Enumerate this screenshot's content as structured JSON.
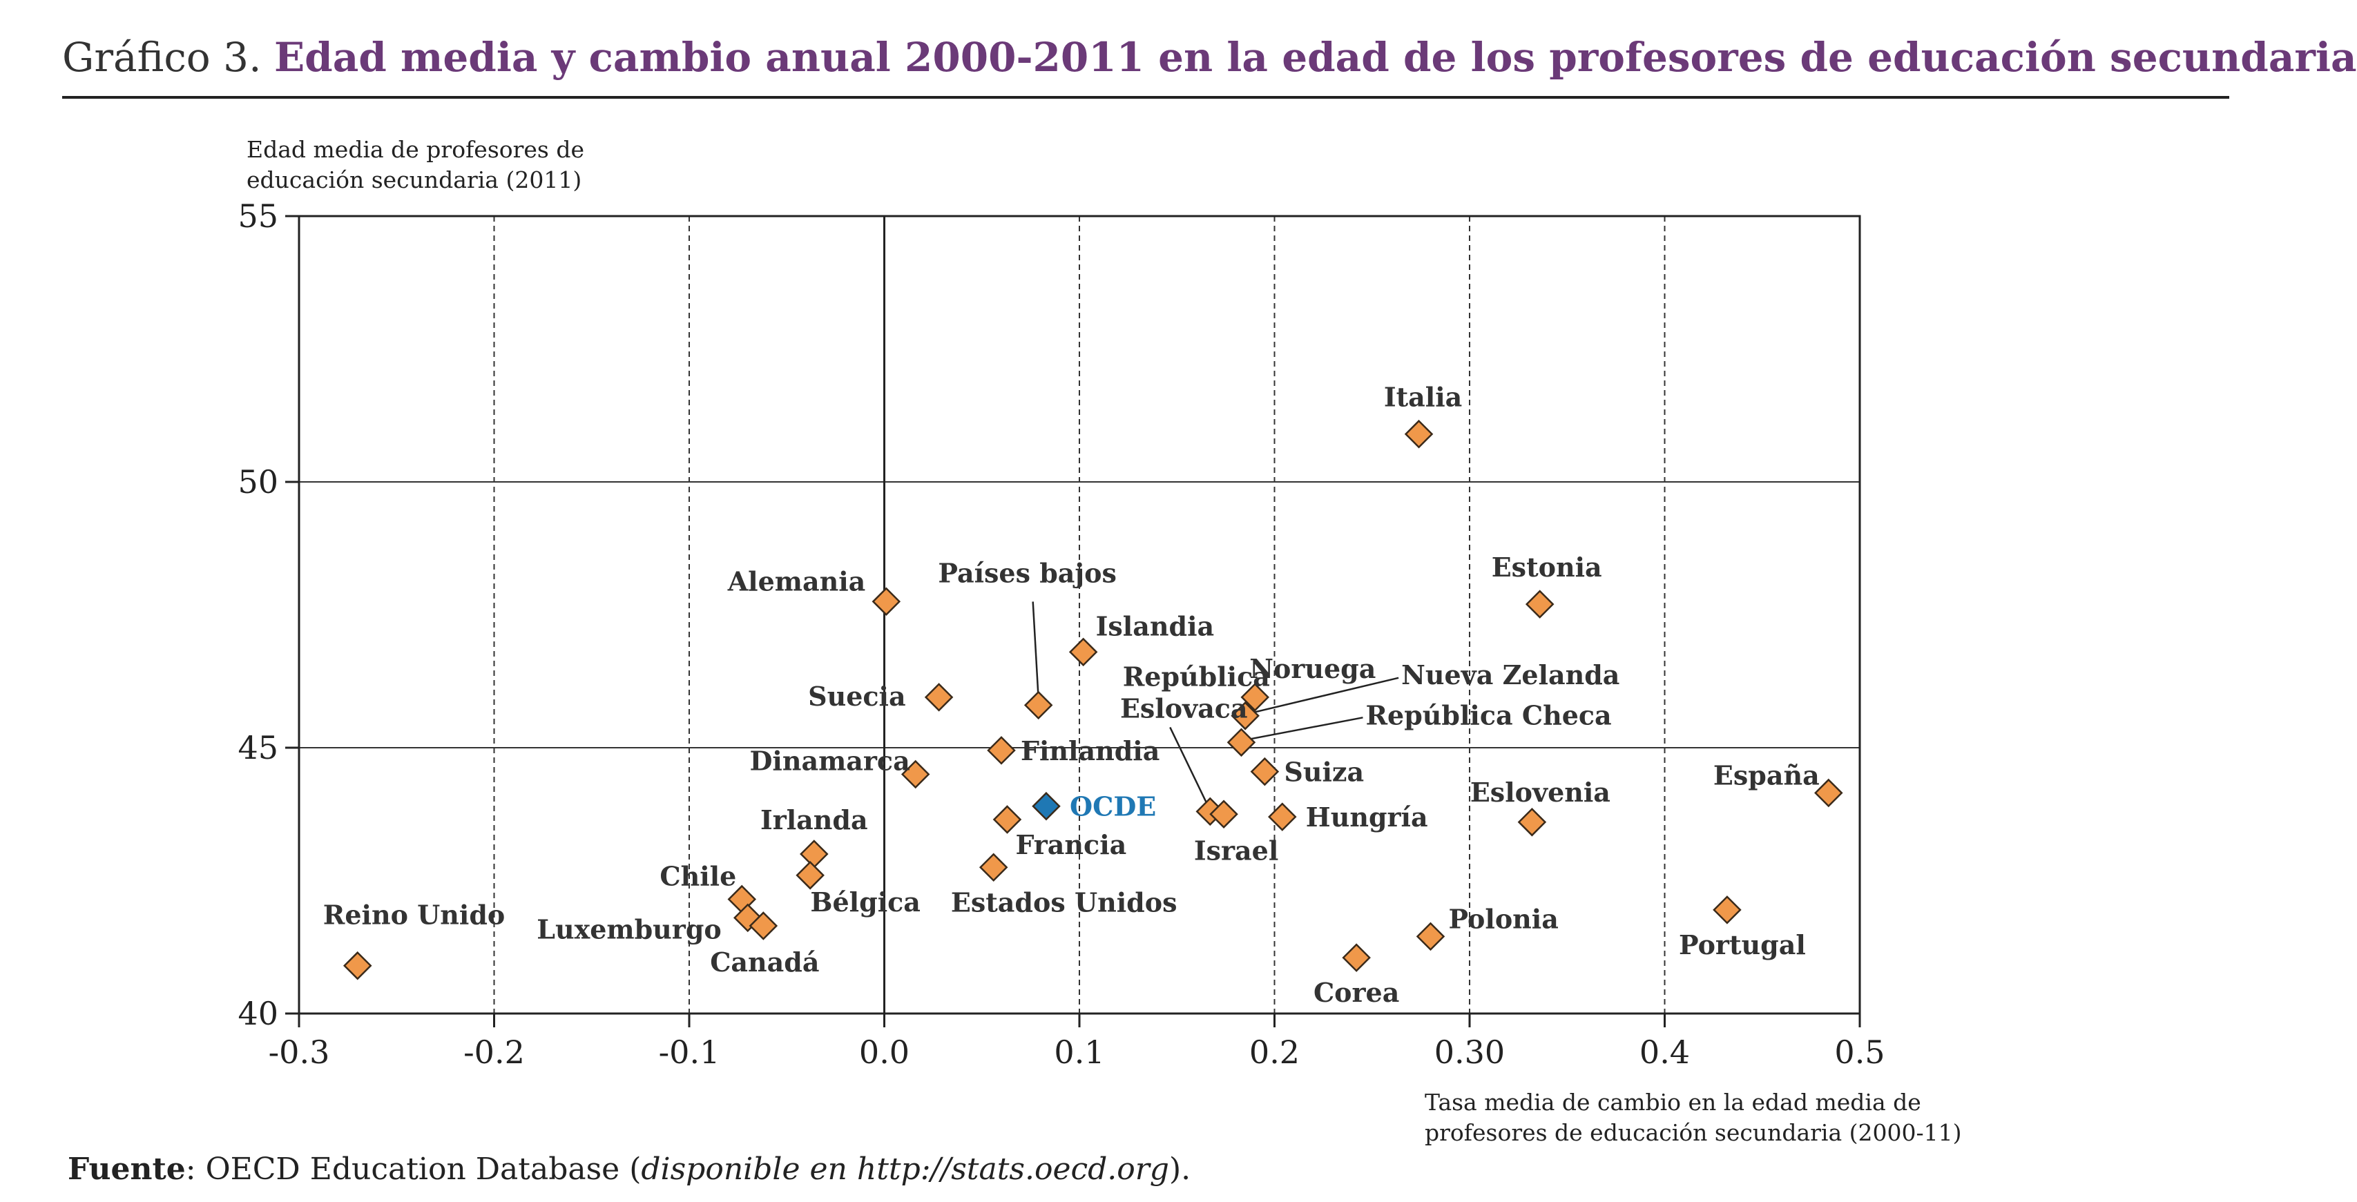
{
  "header": {
    "prefix": "Gráfico 3.",
    "title": "Edad media y cambio anual 2000-2011 en la edad de los profesores de educación secundaria"
  },
  "chart_data": {
    "type": "scatter",
    "ylabel_lines": [
      "Edad media de profesores de",
      "educación secundaria (2011)"
    ],
    "xlabel_lines": [
      "Tasa media de cambio en la edad media de",
      "profesores de educación secundaria (2000-11)"
    ],
    "xlim": [
      -0.3,
      0.5
    ],
    "ylim": [
      40,
      55
    ],
    "x_ticks": [
      -0.3,
      -0.2,
      -0.1,
      0.0,
      0.1,
      0.2,
      0.3,
      0.4,
      0.5
    ],
    "x_tick_labels": [
      "-0.3",
      "-0.2",
      "-0.1",
      "0.0",
      "0.1",
      "0.2",
      "0.30",
      "0.4",
      "0.5"
    ],
    "y_ticks": [
      40,
      45,
      50,
      55
    ],
    "y_tick_labels": [
      "40",
      "45",
      "50",
      "55"
    ],
    "grid": "solid horizontal, dashed vertical",
    "colors": {
      "point": "#f0984a",
      "point_stroke": "#3a2a1a",
      "highlight": "#1f78b4",
      "label": "#333333",
      "title": "#6b3a78"
    },
    "points": [
      {
        "name": "Reino Unido",
        "x": -0.27,
        "y": 40.9
      },
      {
        "name": "Chile",
        "x": -0.073,
        "y": 42.15
      },
      {
        "name": "Luxemburgo",
        "x": -0.07,
        "y": 41.8
      },
      {
        "name": "Canadá",
        "x": -0.062,
        "y": 41.65
      },
      {
        "name": "Irlanda",
        "x": -0.036,
        "y": 43.0
      },
      {
        "name": "Bélgica",
        "x": -0.038,
        "y": 42.6
      },
      {
        "name": "Alemania",
        "x": 0.001,
        "y": 47.75
      },
      {
        "name": "Suecia",
        "x": 0.028,
        "y": 45.95
      },
      {
        "name": "Dinamarca",
        "x": 0.016,
        "y": 44.5
      },
      {
        "name": "Finlandia",
        "x": 0.06,
        "y": 44.95
      },
      {
        "name": "Francia",
        "x": 0.063,
        "y": 43.65
      },
      {
        "name": "Estados Unidos",
        "x": 0.056,
        "y": 42.75
      },
      {
        "name": "Países bajos",
        "x": 0.079,
        "y": 45.8
      },
      {
        "name": "Islandia",
        "x": 0.102,
        "y": 46.8
      },
      {
        "name": "OCDE",
        "x": 0.083,
        "y": 43.9,
        "highlight": true
      },
      {
        "name": "República Eslovaca",
        "x": 0.167,
        "y": 43.8
      },
      {
        "name": "Israel",
        "x": 0.174,
        "y": 43.75
      },
      {
        "name": "Noruega",
        "x": 0.19,
        "y": 45.95
      },
      {
        "name": "Nueva Zelanda",
        "x": 0.185,
        "y": 45.6
      },
      {
        "name": "República Checa",
        "x": 0.183,
        "y": 45.1
      },
      {
        "name": "Suiza",
        "x": 0.195,
        "y": 44.55
      },
      {
        "name": "Hungría",
        "x": 0.204,
        "y": 43.7
      },
      {
        "name": "Italia",
        "x": 0.274,
        "y": 50.9
      },
      {
        "name": "Corea",
        "x": 0.242,
        "y": 41.05
      },
      {
        "name": "Polonia",
        "x": 0.28,
        "y": 41.45
      },
      {
        "name": "Estonia",
        "x": 0.336,
        "y": 47.7
      },
      {
        "name": "Eslovenia",
        "x": 0.332,
        "y": 43.6
      },
      {
        "name": "España",
        "x": 0.484,
        "y": 44.15
      },
      {
        "name": "Portugal",
        "x": 0.432,
        "y": 41.95
      }
    ]
  },
  "source": {
    "label": "Fuente",
    "text_before": ": OECD Education Database (",
    "italic": "disponible en http://stats.oecd.org",
    "text_after": ")."
  }
}
